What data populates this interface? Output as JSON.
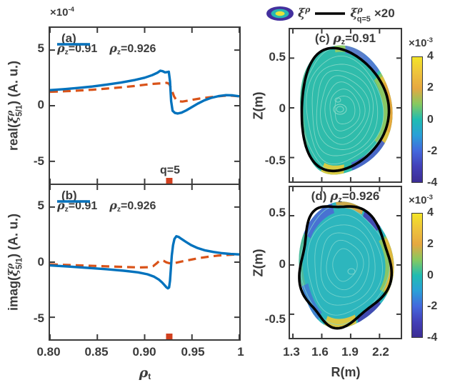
{
  "figure": {
    "bg": "#ffffff",
    "axis_color": "#3b3b3b",
    "top_legend": {
      "blob_icon": "contour-blob-icon",
      "blob_label": "<em>&#958;</em><sup><em>&#961;</em></sup>",
      "line_label": "<em>&#958;</em><sup><em>&#961;</em></sup><sub class=st>q=5</sub>",
      "times_label": "&#215;20",
      "line_color": "#000000",
      "blob_ring_colors": [
        "#43309e",
        "#28b8b2",
        "#e8e33c"
      ]
    },
    "colormap_stops": [
      "#f3e427",
      "#eec33c",
      "#e6a841",
      "#86c960",
      "#20bcb2",
      "#2aa0d8",
      "#4468dd",
      "#4340b8",
      "#3c2d94"
    ]
  },
  "chart_data": [
    {
      "id": "a",
      "type": "line",
      "panel_label": "(a)",
      "ylabel": "real(<em>&#958;</em><sup><em>&#961;</em></sup><sub class=st>5/1</sub>) (A. u.)",
      "y_scale": "&#215;10<sup>-4</sup>",
      "y_units": "1e-4",
      "xlim": [
        0.8,
        1.0
      ],
      "ylim": [
        -7,
        7
      ],
      "xticks": [
        0.8,
        0.85,
        0.9,
        0.95,
        1
      ],
      "yticks": [
        5,
        0,
        -5
      ],
      "ytick_labels": [
        "5",
        "0",
        "-5"
      ],
      "series": [
        {
          "name": "<em>&#961;</em><sub>z</sub>=0.91",
          "color": "#D95319",
          "style": "dashed",
          "points": [
            [
              0.8,
              1.25
            ],
            [
              0.815,
              1.3
            ],
            [
              0.83,
              1.36
            ],
            [
              0.845,
              1.44
            ],
            [
              0.86,
              1.54
            ],
            [
              0.875,
              1.65
            ],
            [
              0.89,
              1.78
            ],
            [
              0.9,
              1.88
            ],
            [
              0.908,
              1.96
            ],
            [
              0.915,
              2.0
            ],
            [
              0.92,
              2.02
            ],
            [
              0.9235,
              2.06
            ],
            [
              0.926,
              1.95
            ],
            [
              0.9285,
              1.45
            ],
            [
              0.931,
              0.85
            ],
            [
              0.9335,
              0.5
            ],
            [
              0.936,
              0.4
            ],
            [
              0.94,
              0.37
            ],
            [
              0.945,
              0.44
            ],
            [
              0.951,
              0.54
            ],
            [
              0.958,
              0.64
            ],
            [
              0.966,
              0.73
            ],
            [
              0.975,
              0.82
            ],
            [
              0.984,
              0.89
            ],
            [
              0.992,
              0.9
            ],
            [
              1.0,
              0.84
            ]
          ]
        },
        {
          "name": "<em>&#961;</em><sub>z</sub>=0.926",
          "color": "#0072BD",
          "style": "solid",
          "points": [
            [
              0.8,
              1.4
            ],
            [
              0.815,
              1.49
            ],
            [
              0.83,
              1.6
            ],
            [
              0.845,
              1.73
            ],
            [
              0.86,
              1.9
            ],
            [
              0.875,
              2.08
            ],
            [
              0.89,
              2.32
            ],
            [
              0.9,
              2.52
            ],
            [
              0.908,
              2.75
            ],
            [
              0.9135,
              2.97
            ],
            [
              0.9165,
              3.15
            ],
            [
              0.919,
              3.1
            ],
            [
              0.9215,
              3.0
            ],
            [
              0.9235,
              3.02
            ],
            [
              0.9255,
              3.06
            ],
            [
              0.9268,
              2.2
            ],
            [
              0.928,
              0.4
            ],
            [
              0.9295,
              -0.45
            ],
            [
              0.932,
              -0.65
            ],
            [
              0.935,
              -0.7
            ],
            [
              0.939,
              -0.62
            ],
            [
              0.944,
              -0.42
            ],
            [
              0.95,
              -0.12
            ],
            [
              0.956,
              0.18
            ],
            [
              0.963,
              0.48
            ],
            [
              0.97,
              0.7
            ],
            [
              0.978,
              0.86
            ],
            [
              0.986,
              0.95
            ],
            [
              0.993,
              0.93
            ],
            [
              1.0,
              0.85
            ]
          ]
        }
      ],
      "annotation": {
        "label": "q=5",
        "x": 0.926,
        "marker_color": "#D2401E"
      }
    },
    {
      "id": "b",
      "type": "line",
      "panel_label": "(b)",
      "ylabel": "imag(<em>&#958;</em><sup><em>&#961;</em></sup><sub class=st>5/1</sub>) (A. u.)",
      "y_scale": "&#215;10<sup>-4</sup>",
      "y_units": "1e-4",
      "xlabel": "<em>&#961;</em><sub>t</sub>",
      "xlim": [
        0.8,
        1.0
      ],
      "ylim": [
        -7,
        7
      ],
      "xticks": [
        0.8,
        0.85,
        0.9,
        0.95,
        1
      ],
      "xtick_labels": [
        "0.80",
        "0.85",
        "0.90",
        "0.95",
        "1"
      ],
      "yticks": [
        5,
        0,
        -5
      ],
      "ytick_labels": [
        "5",
        "0",
        "-5"
      ],
      "series": [
        {
          "name": "<em>&#961;</em><sub>z</sub>=0.91",
          "color": "#D95319",
          "style": "dashed",
          "points": [
            [
              0.8,
              -0.2
            ],
            [
              0.82,
              -0.26
            ],
            [
              0.84,
              -0.32
            ],
            [
              0.86,
              -0.38
            ],
            [
              0.88,
              -0.44
            ],
            [
              0.895,
              -0.48
            ],
            [
              0.904,
              -0.46
            ],
            [
              0.909,
              -0.36
            ],
            [
              0.9125,
              -0.12
            ],
            [
              0.915,
              0.08
            ],
            [
              0.9175,
              0.18
            ],
            [
              0.92,
              0.12
            ],
            [
              0.923,
              -0.02
            ],
            [
              0.926,
              -0.1
            ],
            [
              0.929,
              -0.12
            ],
            [
              0.933,
              -0.06
            ],
            [
              0.938,
              0.04
            ],
            [
              0.944,
              0.14
            ],
            [
              0.951,
              0.26
            ],
            [
              0.959,
              0.39
            ],
            [
              0.968,
              0.5
            ],
            [
              0.977,
              0.59
            ],
            [
              0.986,
              0.65
            ],
            [
              0.993,
              0.68
            ],
            [
              1.0,
              0.7
            ]
          ]
        },
        {
          "name": "<em>&#961;</em><sub>z</sub>=0.926",
          "color": "#0072BD",
          "style": "solid",
          "points": [
            [
              0.8,
              -0.3
            ],
            [
              0.82,
              -0.4
            ],
            [
              0.84,
              -0.52
            ],
            [
              0.86,
              -0.64
            ],
            [
              0.878,
              -0.78
            ],
            [
              0.893,
              -0.93
            ],
            [
              0.903,
              -1.1
            ],
            [
              0.91,
              -1.32
            ],
            [
              0.915,
              -1.58
            ],
            [
              0.9185,
              -1.85
            ],
            [
              0.921,
              -2.08
            ],
            [
              0.923,
              -2.28
            ],
            [
              0.9245,
              -2.38
            ],
            [
              0.9258,
              -2.3
            ],
            [
              0.9268,
              -1.7
            ],
            [
              0.9277,
              -0.6
            ],
            [
              0.9287,
              0.6
            ],
            [
              0.93,
              1.55
            ],
            [
              0.9315,
              2.1
            ],
            [
              0.9335,
              2.35
            ],
            [
              0.936,
              2.28
            ],
            [
              0.939,
              2.1
            ],
            [
              0.9435,
              1.85
            ],
            [
              0.949,
              1.55
            ],
            [
              0.956,
              1.28
            ],
            [
              0.964,
              1.06
            ],
            [
              0.973,
              0.92
            ],
            [
              0.982,
              0.81
            ],
            [
              0.991,
              0.74
            ],
            [
              1.0,
              0.7
            ]
          ]
        }
      ],
      "annotation": {
        "x": 0.926,
        "marker_color": "#D2401E"
      }
    },
    {
      "id": "c",
      "type": "contour",
      "title": "(c) <em>&#961;</em><sub>z</sub>=0.91",
      "ylabel": "Z(m)",
      "xlim": [
        1.27,
        2.42
      ],
      "ylim": [
        -0.74,
        0.79
      ],
      "xticks": [
        1.3,
        1.6,
        1.9,
        2.2
      ],
      "yticks": [
        0.5,
        0,
        -0.5
      ],
      "ytick_labels": [
        "0.5",
        "0",
        "-0.5"
      ],
      "field": "xi-rho displacement contours",
      "boundary": "q=5 surface, displacement x20",
      "colorbar": {
        "scale": "&#215;10<sup>-3</sup>",
        "tick_labels": [
          "4",
          "2",
          "0",
          "-2",
          "-4"
        ],
        "range": [
          -4,
          4
        ]
      }
    },
    {
      "id": "d",
      "type": "contour",
      "title": "(d) <em>&#961;</em><sub>z</sub>=0.926",
      "ylabel": "Z(m)",
      "xlabel": "R(m)",
      "xlim": [
        1.27,
        2.42
      ],
      "ylim": [
        -0.74,
        0.79
      ],
      "xticks": [
        1.3,
        1.6,
        1.9,
        2.2
      ],
      "xtick_labels": [
        "1.3",
        "1.6",
        "1.9",
        "2.2"
      ],
      "yticks": [
        0.5,
        0,
        -0.5
      ],
      "ytick_labels": [
        "0.5",
        "0",
        "-0.5"
      ],
      "field": "xi-rho displacement contours",
      "boundary": "q=5 surface, displacement x20",
      "colorbar": {
        "scale": "&#215;10<sup>-3</sup>",
        "tick_labels": [
          "4",
          "2",
          "0",
          "-2",
          "-4"
        ],
        "range": [
          -4,
          4
        ]
      }
    }
  ]
}
